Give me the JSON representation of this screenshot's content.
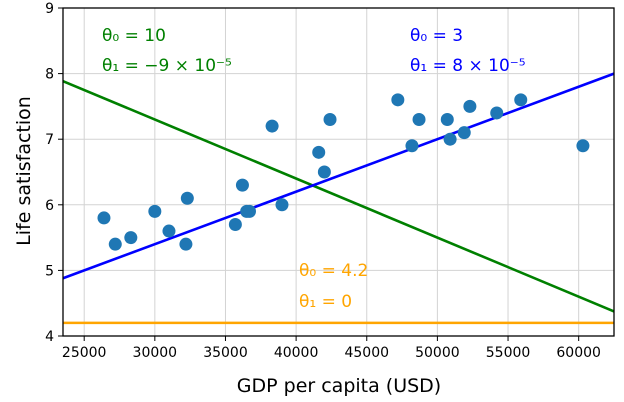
{
  "chart_data": {
    "type": "scatter",
    "xlabel": "GDP per capita (USD)",
    "ylabel": "Life satisfaction",
    "xlim": [
      23500,
      62500
    ],
    "ylim": [
      4,
      9
    ],
    "xticks": [
      25000,
      30000,
      35000,
      40000,
      45000,
      50000,
      55000,
      60000
    ],
    "xtick_labels": [
      "25000",
      "30000",
      "35000",
      "40000",
      "45000",
      "50000",
      "55000",
      "60000"
    ],
    "yticks": [
      4,
      5,
      6,
      7,
      8,
      9
    ],
    "ytick_labels": [
      "4",
      "5",
      "6",
      "7",
      "8",
      "9"
    ],
    "grid": true,
    "point_color": "#1f77b4",
    "points": [
      {
        "x": 26400,
        "y": 5.8
      },
      {
        "x": 27200,
        "y": 5.4
      },
      {
        "x": 28300,
        "y": 5.5
      },
      {
        "x": 30000,
        "y": 5.9
      },
      {
        "x": 31000,
        "y": 5.6
      },
      {
        "x": 32200,
        "y": 5.4
      },
      {
        "x": 32300,
        "y": 6.1
      },
      {
        "x": 35700,
        "y": 5.7
      },
      {
        "x": 36200,
        "y": 6.3
      },
      {
        "x": 36500,
        "y": 5.9
      },
      {
        "x": 36700,
        "y": 5.9
      },
      {
        "x": 38300,
        "y": 7.2
      },
      {
        "x": 39000,
        "y": 6.0
      },
      {
        "x": 41600,
        "y": 6.8
      },
      {
        "x": 42000,
        "y": 6.5
      },
      {
        "x": 42400,
        "y": 7.3
      },
      {
        "x": 47200,
        "y": 7.6
      },
      {
        "x": 48200,
        "y": 6.9
      },
      {
        "x": 48700,
        "y": 7.3
      },
      {
        "x": 50700,
        "y": 7.3
      },
      {
        "x": 50900,
        "y": 7.0
      },
      {
        "x": 51900,
        "y": 7.1
      },
      {
        "x": 52300,
        "y": 7.5
      },
      {
        "x": 54200,
        "y": 7.4
      },
      {
        "x": 55900,
        "y": 7.6
      },
      {
        "x": 60300,
        "y": 6.9
      }
    ],
    "lines": [
      {
        "color": "#008000",
        "theta0": 10,
        "theta1": -9e-05,
        "label_line1": "θ₀ = 10",
        "label_line2": "θ₁ = −9 × 10⁻⁵"
      },
      {
        "color": "#0000ff",
        "theta0": 3,
        "theta1": 8e-05,
        "label_line1": "θ₀ = 3",
        "label_line2": "θ₁ = 8 × 10⁻⁵"
      },
      {
        "color": "#ffa500",
        "theta0": 4.2,
        "theta1": 0,
        "label_line1": "θ₀ = 4.2",
        "label_line2": "θ₁ = 0"
      }
    ]
  }
}
